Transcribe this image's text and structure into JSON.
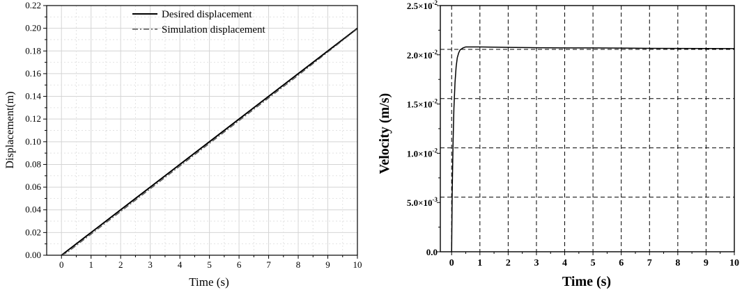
{
  "chart_data": [
    {
      "type": "line",
      "title": "",
      "xlabel": "Time (s)",
      "ylabel": "Displacement(m)",
      "xlim": [
        -0.5,
        10
      ],
      "ylim": [
        0,
        0.22
      ],
      "x_ticks": [
        0,
        1,
        2,
        3,
        4,
        5,
        6,
        7,
        8,
        9,
        10
      ],
      "x_tick_labels": [
        "0",
        "1",
        "2",
        "3",
        "4",
        "5",
        "6",
        "7",
        "8",
        "9",
        "10"
      ],
      "y_ticks": [
        0,
        0.02,
        0.04,
        0.06,
        0.08,
        0.1,
        0.12,
        0.14,
        0.16,
        0.18,
        0.2,
        0.22
      ],
      "y_tick_labels": [
        "0.00",
        "0.02",
        "0.04",
        "0.06",
        "0.08",
        "0.10",
        "0.12",
        "0.14",
        "0.16",
        "0.18",
        "0.20",
        "0.22"
      ],
      "grid": true,
      "legend_position": "top-center",
      "series": [
        {
          "name": "Desired displacement",
          "style": "solid",
          "color": "#000000",
          "x": [
            0,
            1,
            2,
            3,
            4,
            5,
            6,
            7,
            8,
            9,
            10
          ],
          "y": [
            0,
            0.02,
            0.04,
            0.06,
            0.08,
            0.1,
            0.12,
            0.14,
            0.16,
            0.18,
            0.2
          ]
        },
        {
          "name": "Simulation displacement",
          "style": "dash-dot",
          "color": "#555555",
          "x": [
            0,
            0.2,
            1,
            2,
            3,
            4,
            5,
            6,
            7,
            8,
            9,
            10
          ],
          "y": [
            0,
            0.0025,
            0.0185,
            0.0385,
            0.0585,
            0.0785,
            0.0985,
            0.1185,
            0.1385,
            0.1585,
            0.179,
            0.1995
          ]
        }
      ]
    },
    {
      "type": "line",
      "title": "",
      "xlabel": "Time (s)",
      "ylabel": "Velocity (m/s)",
      "xlim": [
        -0.4,
        10
      ],
      "ylim": [
        0,
        0.025
      ],
      "x_ticks": [
        0,
        1,
        2,
        3,
        4,
        5,
        6,
        7,
        8,
        9,
        10
      ],
      "x_tick_labels": [
        "0",
        "1",
        "2",
        "3",
        "4",
        "5",
        "6",
        "7",
        "8",
        "9",
        "10"
      ],
      "y_ticks": [
        0,
        0.005,
        0.01,
        0.015,
        0.02,
        0.025
      ],
      "y_tick_labels": [
        {
          "mantissa": "0.0",
          "exp": ""
        },
        {
          "mantissa": "5.0×10",
          "exp": "-3"
        },
        {
          "mantissa": "1.0×10",
          "exp": "-2"
        },
        {
          "mantissa": "1.5×10",
          "exp": "-2"
        },
        {
          "mantissa": "2.0×10",
          "exp": "-2"
        },
        {
          "mantissa": "2.5×10",
          "exp": "-2"
        }
      ],
      "grid": "dashed",
      "grid_x": [
        0,
        1,
        2,
        3,
        4,
        5,
        6,
        7,
        8,
        9
      ],
      "grid_y": [
        0.00555,
        0.01055,
        0.01555,
        0.02055
      ],
      "series": [
        {
          "style": "solid",
          "color": "#000000",
          "x": [
            0,
            0.02,
            0.05,
            0.08,
            0.12,
            0.16,
            0.2,
            0.25,
            0.3,
            0.4,
            0.5,
            0.7,
            1,
            2,
            3,
            4,
            5,
            6,
            7,
            8,
            9,
            10
          ],
          "y": [
            0,
            0.006,
            0.011,
            0.0145,
            0.0172,
            0.0188,
            0.0197,
            0.0202,
            0.0205,
            0.0207,
            0.0208,
            0.0208,
            0.0208,
            0.02075,
            0.02072,
            0.0207,
            0.0207,
            0.02068,
            0.02066,
            0.02065,
            0.02064,
            0.02063
          ]
        }
      ]
    }
  ]
}
